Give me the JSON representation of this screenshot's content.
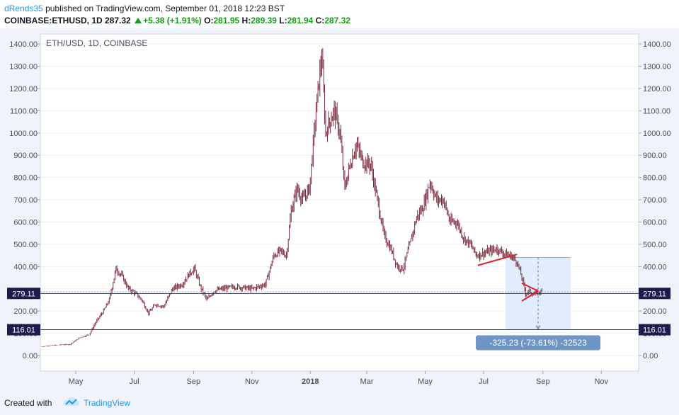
{
  "header": {
    "author": "dRends35",
    "published_text": "published on TradingView.com, September 01, 2018 12:23 BST",
    "symbol_line": "COINBASE:ETHUSD, 1D",
    "last_price": "287.32",
    "change": "+5.38 (+1.91%)",
    "o_label": "O:",
    "o_value": "281.95",
    "h_label": "H:",
    "h_value": "289.39",
    "l_label": "L:",
    "l_value": "281.94",
    "c_label": "C:",
    "c_value": "287.32"
  },
  "footer": {
    "created_with": "Created with",
    "brand": "TradingView"
  },
  "colors": {
    "candle": "#7b2a3e",
    "band": "#dbeafc",
    "price_tag": "#1e1b4d",
    "measure_label_bg": "#6f95c6",
    "trendline": "#e0212b",
    "background": "#ffffff"
  },
  "chart_data": {
    "type": "candlestick",
    "title": "ETH/USD, 1D, COINBASE",
    "x_ticks": [
      "May",
      "Jul",
      "Sep",
      "Nov",
      "2018",
      "Mar",
      "May",
      "Jul",
      "Sep",
      "Nov"
    ],
    "y_ticks": [
      "0.00",
      "100.00",
      "200.00",
      "300.00",
      "400.00",
      "500.00",
      "600.00",
      "700.00",
      "800.00",
      "900.00",
      "1000.00",
      "1100.00",
      "1200.00",
      "1300.00",
      "1400.00"
    ],
    "ylim": [
      -70,
      1445
    ],
    "x_range": [
      "2017-03-25",
      "2018-12-10"
    ],
    "price_levels": {
      "last": "287.32",
      "level_a": "279.11",
      "level_b": "116.01"
    },
    "measure_label": "-325.23 (-73.61%) -32523",
    "measure": {
      "from": 441,
      "to": 116.01,
      "start": "2018-07-24",
      "end": "2018-09-30"
    },
    "trendlines": [
      {
        "x1": "2018-06-25",
        "y1": 405,
        "x2": "2018-08-05",
        "y2": 455
      },
      {
        "x1": "2018-08-10",
        "y1": 325,
        "x2": "2018-08-27",
        "y2": 290
      },
      {
        "x1": "2018-08-10",
        "y1": 245,
        "x2": "2018-08-27",
        "y2": 290
      }
    ],
    "series": [
      {
        "date": "2017-03-26",
        "value": 40
      },
      {
        "date": "2017-04-05",
        "value": 45
      },
      {
        "date": "2017-04-15",
        "value": 48
      },
      {
        "date": "2017-04-25",
        "value": 50
      },
      {
        "date": "2017-05-05",
        "value": 80
      },
      {
        "date": "2017-05-15",
        "value": 95
      },
      {
        "date": "2017-05-22",
        "value": 150
      },
      {
        "date": "2017-05-30",
        "value": 200
      },
      {
        "date": "2017-06-05",
        "value": 250
      },
      {
        "date": "2017-06-12",
        "value": 390
      },
      {
        "date": "2017-06-18",
        "value": 360
      },
      {
        "date": "2017-06-25",
        "value": 300
      },
      {
        "date": "2017-07-02",
        "value": 280
      },
      {
        "date": "2017-07-09",
        "value": 250
      },
      {
        "date": "2017-07-16",
        "value": 190
      },
      {
        "date": "2017-07-23",
        "value": 230
      },
      {
        "date": "2017-08-01",
        "value": 220
      },
      {
        "date": "2017-08-10",
        "value": 300
      },
      {
        "date": "2017-08-20",
        "value": 320
      },
      {
        "date": "2017-08-28",
        "value": 370
      },
      {
        "date": "2017-09-02",
        "value": 390
      },
      {
        "date": "2017-09-08",
        "value": 310
      },
      {
        "date": "2017-09-15",
        "value": 250
      },
      {
        "date": "2017-09-22",
        "value": 290
      },
      {
        "date": "2017-10-01",
        "value": 300
      },
      {
        "date": "2017-10-15",
        "value": 310
      },
      {
        "date": "2017-11-01",
        "value": 300
      },
      {
        "date": "2017-11-15",
        "value": 320
      },
      {
        "date": "2017-11-24",
        "value": 450
      },
      {
        "date": "2017-12-01",
        "value": 470
      },
      {
        "date": "2017-12-07",
        "value": 450
      },
      {
        "date": "2017-12-12",
        "value": 650
      },
      {
        "date": "2017-12-18",
        "value": 750
      },
      {
        "date": "2017-12-24",
        "value": 700
      },
      {
        "date": "2017-12-31",
        "value": 750
      },
      {
        "date": "2018-01-04",
        "value": 950
      },
      {
        "date": "2018-01-08",
        "value": 1150
      },
      {
        "date": "2018-01-13",
        "value": 1350
      },
      {
        "date": "2018-01-17",
        "value": 1000
      },
      {
        "date": "2018-01-21",
        "value": 1050
      },
      {
        "date": "2018-01-26",
        "value": 1100
      },
      {
        "date": "2018-02-01",
        "value": 1000
      },
      {
        "date": "2018-02-06",
        "value": 750
      },
      {
        "date": "2018-02-11",
        "value": 850
      },
      {
        "date": "2018-02-18",
        "value": 950
      },
      {
        "date": "2018-02-25",
        "value": 870
      },
      {
        "date": "2018-03-05",
        "value": 860
      },
      {
        "date": "2018-03-12",
        "value": 700
      },
      {
        "date": "2018-03-19",
        "value": 540
      },
      {
        "date": "2018-03-26",
        "value": 480
      },
      {
        "date": "2018-04-02",
        "value": 400
      },
      {
        "date": "2018-04-08",
        "value": 390
      },
      {
        "date": "2018-04-15",
        "value": 500
      },
      {
        "date": "2018-04-22",
        "value": 620
      },
      {
        "date": "2018-04-29",
        "value": 670
      },
      {
        "date": "2018-05-06",
        "value": 780
      },
      {
        "date": "2018-05-13",
        "value": 700
      },
      {
        "date": "2018-05-20",
        "value": 700
      },
      {
        "date": "2018-05-27",
        "value": 600
      },
      {
        "date": "2018-06-03",
        "value": 600
      },
      {
        "date": "2018-06-10",
        "value": 530
      },
      {
        "date": "2018-06-17",
        "value": 500
      },
      {
        "date": "2018-06-24",
        "value": 450
      },
      {
        "date": "2018-07-01",
        "value": 460
      },
      {
        "date": "2018-07-08",
        "value": 470
      },
      {
        "date": "2018-07-15",
        "value": 480
      },
      {
        "date": "2018-07-22",
        "value": 460
      },
      {
        "date": "2018-07-29",
        "value": 450
      },
      {
        "date": "2018-08-05",
        "value": 420
      },
      {
        "date": "2018-08-10",
        "value": 350
      },
      {
        "date": "2018-08-14",
        "value": 280
      },
      {
        "date": "2018-08-18",
        "value": 290
      },
      {
        "date": "2018-08-22",
        "value": 275
      },
      {
        "date": "2018-08-27",
        "value": 285
      },
      {
        "date": "2018-08-31",
        "value": 287
      }
    ]
  }
}
